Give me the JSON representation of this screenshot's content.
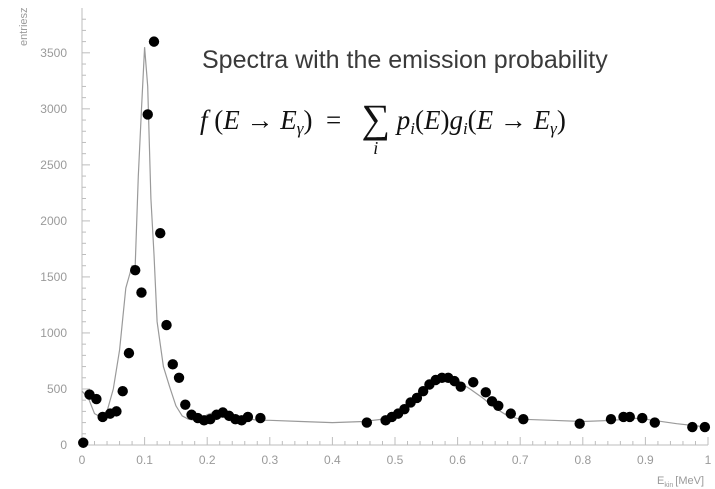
{
  "annotation": {
    "title": "Spectra with the emission probability",
    "formula": "f (E → E_γ) = Σ_i p_i(E) g_i(E → E_γ)",
    "formula_parts": {
      "f": "f",
      "lp1": "(",
      "E1": "E",
      "arrow1": "→",
      "E2": "E",
      "gamma1": "γ",
      "rp1": ")",
      "eq": "=",
      "sum": "∑",
      "sum_index": "i",
      "p": "p",
      "i1": "i",
      "lp2": "(",
      "E3": "E",
      "rp2": ")",
      "g": "g",
      "i2": "i",
      "lp3": "(",
      "E4": "E",
      "arrow2": "→",
      "E5": "E",
      "gamma2": "γ",
      "rp3": ")"
    }
  },
  "colors": {
    "histogram": "#9a9a9a",
    "points": "#000000",
    "axis": "#bdbdbd",
    "text": "#9a9a9a"
  },
  "chart_data": {
    "type": "scatter",
    "title": "",
    "xlabel": "E_kin [MeV]",
    "xlabel_parts": {
      "main": "E",
      "sub": "kin",
      "unit": "[MeV]"
    },
    "ylabel": "entriesz",
    "xlim": [
      0,
      1
    ],
    "ylim": [
      0,
      3900
    ],
    "xticks": [
      "0",
      "0.1",
      "0.2",
      "0.3",
      "0.4",
      "0.5",
      "0.6",
      "0.7",
      "0.8",
      "0.9",
      "1"
    ],
    "yticks": [
      "0",
      "500",
      "1000",
      "1500",
      "2000",
      "2500",
      "3000",
      "3500"
    ],
    "grid": false,
    "series": [
      {
        "kind": "histogram",
        "x": [
          0.0,
          0.01,
          0.02,
          0.03,
          0.04,
          0.05,
          0.06,
          0.07,
          0.08,
          0.085,
          0.09,
          0.095,
          0.1,
          0.105,
          0.11,
          0.115,
          0.12,
          0.13,
          0.14,
          0.15,
          0.16,
          0.17,
          0.18,
          0.19,
          0.2,
          0.21,
          0.22,
          0.23,
          0.24,
          0.25,
          0.26,
          0.27,
          0.28,
          0.3,
          0.35,
          0.4,
          0.45,
          0.48,
          0.5,
          0.52,
          0.54,
          0.56,
          0.58,
          0.6,
          0.62,
          0.64,
          0.66,
          0.68,
          0.7,
          0.75,
          0.8,
          0.85,
          0.88,
          0.9,
          0.95,
          1.0
        ],
        "y": [
          480,
          420,
          280,
          250,
          300,
          500,
          850,
          1400,
          1600,
          1600,
          2400,
          3000,
          3550,
          3200,
          2200,
          1700,
          1100,
          700,
          520,
          350,
          260,
          230,
          220,
          230,
          270,
          290,
          270,
          240,
          220,
          230,
          240,
          230,
          220,
          220,
          210,
          200,
          210,
          230,
          280,
          380,
          480,
          560,
          600,
          570,
          500,
          420,
          330,
          260,
          230,
          220,
          210,
          220,
          240,
          230,
          190,
          160
        ]
      },
      {
        "kind": "points",
        "x": [
          0.002,
          0.012,
          0.023,
          0.033,
          0.045,
          0.055,
          0.065,
          0.075,
          0.085,
          0.095,
          0.105,
          0.115,
          0.125,
          0.135,
          0.145,
          0.155,
          0.165,
          0.175,
          0.185,
          0.195,
          0.205,
          0.215,
          0.225,
          0.235,
          0.245,
          0.255,
          0.265,
          0.285,
          0.455,
          0.485,
          0.495,
          0.505,
          0.515,
          0.525,
          0.535,
          0.545,
          0.555,
          0.565,
          0.575,
          0.585,
          0.595,
          0.605,
          0.625,
          0.645,
          0.655,
          0.665,
          0.685,
          0.705,
          0.795,
          0.845,
          0.865,
          0.875,
          0.895,
          0.915,
          0.975,
          0.995
        ],
        "y": [
          20,
          450,
          410,
          250,
          280,
          300,
          480,
          820,
          1560,
          1360,
          2950,
          3600,
          1890,
          1070,
          720,
          600,
          360,
          270,
          240,
          220,
          230,
          270,
          290,
          260,
          230,
          220,
          250,
          240,
          200,
          220,
          250,
          280,
          320,
          380,
          420,
          480,
          540,
          580,
          600,
          600,
          570,
          520,
          560,
          470,
          390,
          350,
          280,
          230,
          190,
          230,
          250,
          250,
          240,
          200,
          160,
          160
        ]
      }
    ]
  }
}
